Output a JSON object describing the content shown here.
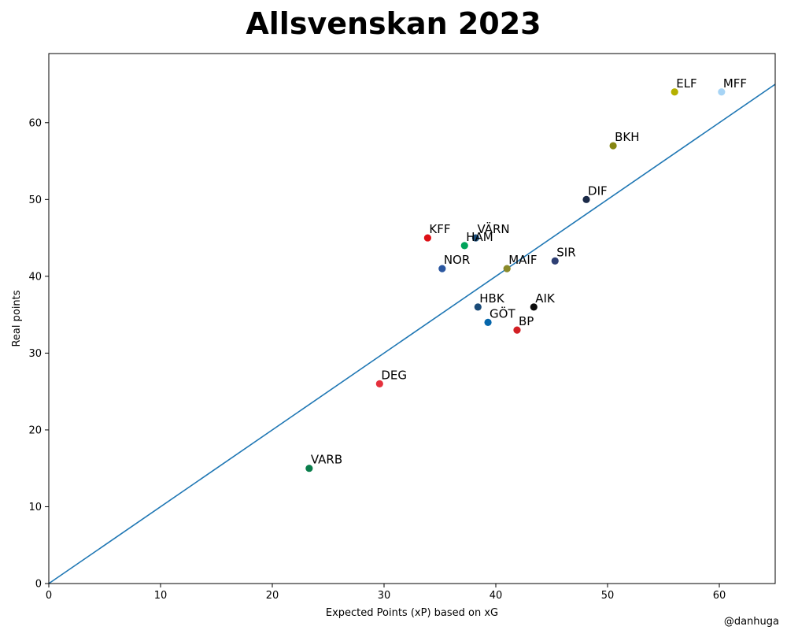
{
  "chart_data": {
    "type": "scatter",
    "title": "Allsvenskan 2023",
    "xlabel": "Expected Points (xP) based on xG",
    "ylabel": "Real points",
    "xlim": [
      0,
      65
    ],
    "ylim": [
      0,
      69
    ],
    "xticks": [
      0,
      10,
      20,
      30,
      40,
      50,
      60
    ],
    "yticks": [
      0,
      10,
      20,
      30,
      40,
      50,
      60
    ],
    "grid": false,
    "reference_line": {
      "type": "y=x",
      "color": "#1f77b4"
    },
    "points": [
      {
        "label": "MFF",
        "x": 60.2,
        "y": 64,
        "color": "#a7d4f5"
      },
      {
        "label": "ELF",
        "x": 56.0,
        "y": 64,
        "color": "#b5b000"
      },
      {
        "label": "BKH",
        "x": 50.5,
        "y": 57,
        "color": "#868612"
      },
      {
        "label": "DIF",
        "x": 48.1,
        "y": 50,
        "color": "#1b2a48"
      },
      {
        "label": "VÄRN",
        "x": 38.2,
        "y": 45,
        "color": "#1d4f7c"
      },
      {
        "label": "KFF",
        "x": 33.9,
        "y": 45,
        "color": "#dd1016"
      },
      {
        "label": "HAM",
        "x": 37.2,
        "y": 44,
        "color": "#00a35a"
      },
      {
        "label": "SIR",
        "x": 45.3,
        "y": 42,
        "color": "#2e3f73"
      },
      {
        "label": "MAIF",
        "x": 41.0,
        "y": 41,
        "color": "#8a8a2a"
      },
      {
        "label": "NOR",
        "x": 35.2,
        "y": 41,
        "color": "#2b57a0"
      },
      {
        "label": "AIK",
        "x": 43.4,
        "y": 36,
        "color": "#0a0a0a"
      },
      {
        "label": "HBK",
        "x": 38.4,
        "y": 36,
        "color": "#1a4b78"
      },
      {
        "label": "GÖT",
        "x": 39.3,
        "y": 34,
        "color": "#0566ab"
      },
      {
        "label": "BP",
        "x": 41.9,
        "y": 33,
        "color": "#d21f24"
      },
      {
        "label": "DEG",
        "x": 29.6,
        "y": 26,
        "color": "#e5303c"
      },
      {
        "label": "VARB",
        "x": 23.3,
        "y": 15,
        "color": "#0a7d4b"
      }
    ]
  },
  "footer": {
    "credit": "@danhuga"
  }
}
